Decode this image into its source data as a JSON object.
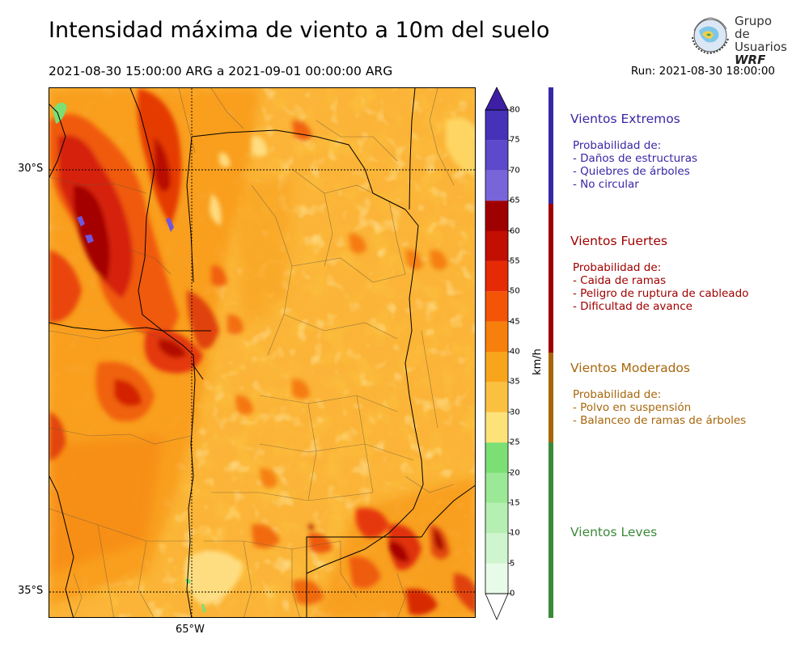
{
  "header": {
    "title": "Intensidad máxima de viento a 10m del suelo",
    "period": "2021-08-30 15:00:00 ARG  a  2021-09-01 00:00:00 ARG",
    "run": "Run: 2021-08-30 18:00:00"
  },
  "logo": {
    "line1": "Grupo de",
    "line2": "Usuarios",
    "line3": "WRF"
  },
  "map": {
    "lat_labels": [
      "30°S",
      "35°S"
    ],
    "lon_labels": [
      "65°W"
    ]
  },
  "colorbar": {
    "unit": "km/h",
    "ticks": [
      "0",
      "5",
      "10",
      "15",
      "20",
      "25",
      "30",
      "35",
      "40",
      "45",
      "50",
      "55",
      "60",
      "65",
      "70",
      "75",
      "80"
    ],
    "colors": [
      "#e8fbe8",
      "#cff5cf",
      "#b6efb2",
      "#9be896",
      "#7bdf73",
      "#fde27a",
      "#fcc041",
      "#f9a51c",
      "#f77f0b",
      "#f45406",
      "#e62a05",
      "#c30e02",
      "#9f0000",
      "#7865d9",
      "#5d49cc",
      "#4532b8",
      "#2f1d98"
    ],
    "extend_min_color": "#ffffff",
    "extend_max_color": "#3d1fa6"
  },
  "categories": [
    {
      "title": "Vientos Extremos",
      "color": "#3827a6",
      "lines": [
        "Probabilidad de:",
        "- Daños de estructuras",
        "- Quiebres de árboles",
        "- No circular"
      ]
    },
    {
      "title": "Vientos Fuertes",
      "color": "#a00000",
      "lines": [
        "Probabilidad de:",
        "- Caida de ramas",
        "- Peligro de ruptura de cableado",
        "- Dificultad de avance"
      ]
    },
    {
      "title": "Vientos Moderados",
      "color": "#a8660b",
      "lines": [
        "Probabilidad de:",
        "- Polvo en suspensión",
        "- Balanceo de ramas de árboles"
      ]
    },
    {
      "title": "Vientos Leves",
      "color": "#3a8a3a",
      "lines": []
    }
  ]
}
